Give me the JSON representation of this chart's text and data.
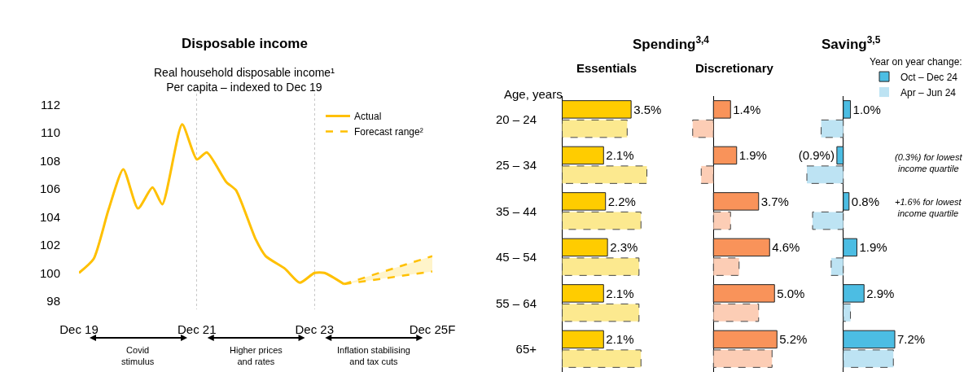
{
  "chart_data": [
    {
      "type": "line",
      "title": "Disposable income",
      "subtitle": "Real household disposable income¹\nPer capita – indexed to Dec 19",
      "x": [
        "2019-12",
        "2020-03",
        "2020-06",
        "2020-09",
        "2020-12",
        "2021-03",
        "2021-05",
        "2021-09",
        "2021-12",
        "2022-02",
        "2022-06",
        "2022-08",
        "2022-12",
        "2023-02",
        "2023-06",
        "2023-09",
        "2023-12",
        "2024-02",
        "2024-06"
      ],
      "series": [
        {
          "name": "Actual",
          "color": "#ffc000",
          "values": [
            100.0,
            101.0,
            104.5,
            107.4,
            104.6,
            106.1,
            104.9,
            110.6,
            108.1,
            108.6,
            106.5,
            105.9,
            102.4,
            101.2,
            100.3,
            99.3,
            100.0,
            100.0,
            99.2
          ]
        },
        {
          "name": "Forecast range²",
          "color": "#ffc000",
          "x": [
            "2024-06",
            "2025-12"
          ],
          "values": [
            99.2,
            101.2
          ],
          "line_style": "dashed"
        },
        {
          "color": "#ffc000",
          "x": [
            "2024-06",
            "2025-12"
          ],
          "values": [
            99.2,
            100.1
          ],
          "line_style": "dashed"
        }
      ],
      "xlim": [
        "2019-12",
        "2025-12"
      ],
      "xticks": [
        {
          "value": "2019-12",
          "label": "Dec 19"
        },
        {
          "value": "2021-12",
          "label": "Dec 21"
        },
        {
          "value": "2023-12",
          "label": "Dec 23"
        },
        {
          "value": "2025-12",
          "label": "Dec 25F"
        }
      ],
      "ylim": [
        97.4,
        112.8
      ],
      "yticks": [
        98,
        100,
        102,
        104,
        106,
        108,
        110,
        112
      ],
      "grid": "x",
      "legend": "top right",
      "annotations": [
        "Covid\nstimulus",
        "Higher prices\nand rates",
        "Inflation stabilising\nand tax cuts"
      ]
    },
    {
      "type": "bar",
      "orientation": "horizontal",
      "title": "Spending$^{3,4}$",
      "subtitle": "Essentials",
      "ylabel": "Age, years",
      "tick_labels": "y",
      "categories": [
        "20 – 24",
        "25 – 34",
        "35 – 44",
        "45 – 54",
        "55 – 64",
        "65+"
      ],
      "series": [
        {
          "color": "#ffcc00",
          "values": [
            3.5,
            2.1,
            2.2,
            2.3,
            2.1,
            2.1
          ],
          "value_labels": [
            "3.5%",
            "2.1%",
            "2.2%",
            "2.3%",
            "2.1%",
            "2.1%"
          ]
        },
        {
          "color": "#fce98f",
          "values": [
            3.3,
            4.3,
            4.0,
            3.9,
            3.9,
            4.0
          ],
          "line_style": "dashed"
        }
      ]
    },
    {
      "type": "bar",
      "orientation": "horizontal",
      "subtitle": "Discretionary",
      "tick_labels": false,
      "series": [
        {
          "color": "#f9935a",
          "values": [
            1.4,
            1.9,
            3.7,
            4.6,
            5.0,
            5.2
          ],
          "value_labels": [
            "1.4%",
            "1.9%",
            "3.7%",
            "4.6%",
            "5.0%",
            "5.2%"
          ]
        },
        {
          "color": "#fccdb5",
          "values": [
            -1.7,
            -1.0,
            1.4,
            2.1,
            3.7,
            4.8
          ],
          "line_style": "dashed"
        }
      ]
    },
    {
      "type": "bar",
      "orientation": "horizontal",
      "title": "Saving$^{3,5}$",
      "tick_labels": false,
      "legend": "top right",
      "legend_title": "Year on year change:",
      "series": [
        {
          "name": "Oct – Dec 24",
          "color": "#4cbde3",
          "values": [
            1.0,
            -0.9,
            0.8,
            1.9,
            2.9,
            7.2
          ],
          "value_labels": [
            "1.0%",
            "(0.9%)",
            "0.8%",
            "1.9%",
            "2.9%",
            "7.2%"
          ]
        },
        {
          "name": "Apr – Jun 24",
          "color": "#bde3f3",
          "values": [
            -3.1,
            -5.1,
            -4.3,
            -1.7,
            1.0,
            7.0
          ],
          "line_style": "dashed"
        }
      ],
      "annotations": [
        "(0.3%) for lowest\nincome quartile",
        "+1.6% for lowest\nincome quartile"
      ]
    }
  ]
}
